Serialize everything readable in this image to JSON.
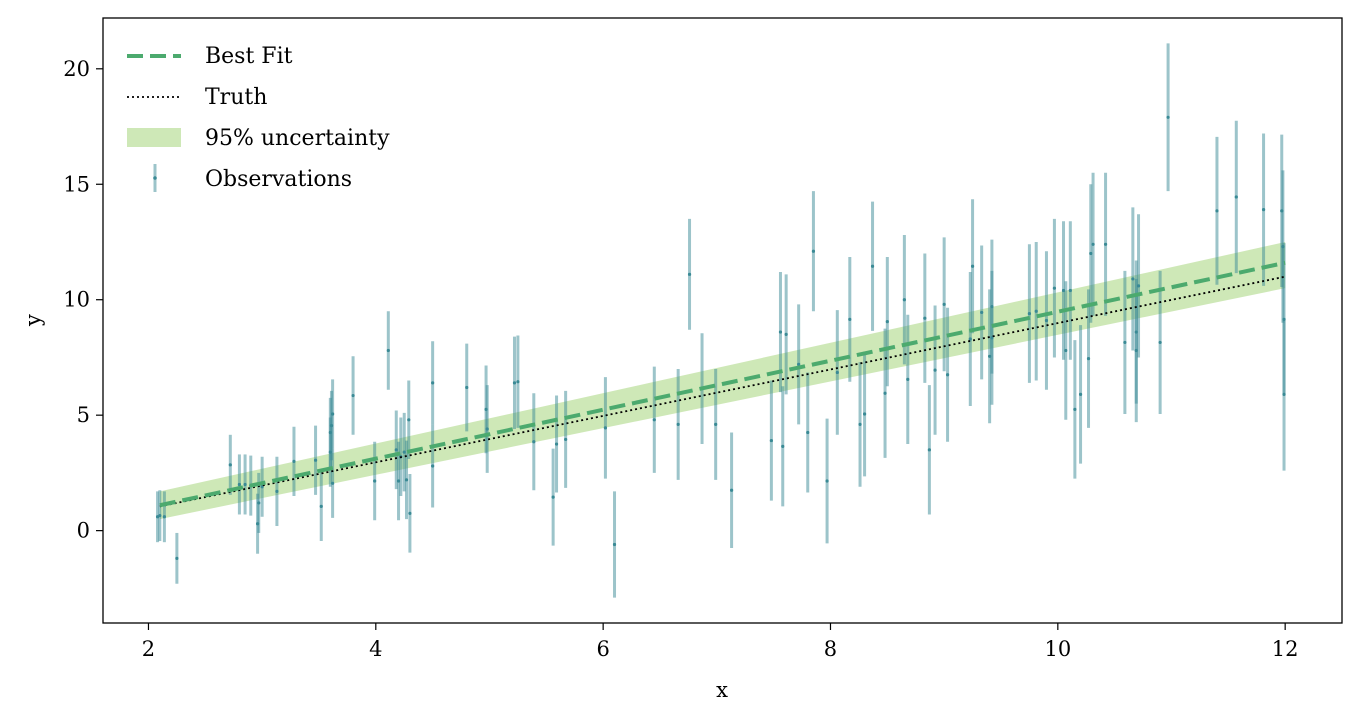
{
  "chart_data": {
    "type": "scatter",
    "title": "",
    "xlabel": "x",
    "ylabel": "y",
    "xlim": [
      1.6,
      12.5
    ],
    "ylim": [
      -4,
      22.2
    ],
    "xticks": [
      2,
      4,
      6,
      8,
      10,
      12
    ],
    "yticks": [
      0,
      5,
      10,
      15,
      20
    ],
    "grid": false,
    "legend_position": "top-left",
    "colors": {
      "best_fit": "#4caa6e",
      "truth": "#000000",
      "band": "#a6d67c",
      "observations": "#3a8a95"
    },
    "legend": [
      "Best Fit",
      "Truth",
      "95% uncertainty",
      "Observations"
    ],
    "best_fit": {
      "x": [
        2.1,
        12.0
      ],
      "y": [
        1.1,
        11.6
      ]
    },
    "truth": {
      "x": [
        2.1,
        12.0
      ],
      "y": [
        1.05,
        11.0
      ]
    },
    "uncertainty_band": {
      "x": [
        2.1,
        12.0
      ],
      "lower": [
        0.5,
        10.5
      ],
      "upper": [
        1.7,
        12.5
      ]
    },
    "observations": {
      "x": [
        2.08,
        2.1,
        2.14,
        2.25,
        2.72,
        2.8,
        2.85,
        2.9,
        2.96,
        2.97,
        3.0,
        3.13,
        3.28,
        3.47,
        3.52,
        3.6,
        3.6,
        3.61,
        3.62,
        3.62,
        3.8,
        3.99,
        4.11,
        4.18,
        4.2,
        4.22,
        4.25,
        4.27,
        4.29,
        4.3,
        4.5,
        4.5,
        4.8,
        4.97,
        4.98,
        5.22,
        5.25,
        5.39,
        5.56,
        5.59,
        5.67,
        6.02,
        6.1,
        6.45,
        6.66,
        6.76,
        6.87,
        6.99,
        7.13,
        7.48,
        7.56,
        7.58,
        7.61,
        7.72,
        7.8,
        7.85,
        7.97,
        8.06,
        8.17,
        8.26,
        8.3,
        8.37,
        8.48,
        8.5,
        8.65,
        8.68,
        8.83,
        8.87,
        8.92,
        9.0,
        9.03,
        9.23,
        9.25,
        9.33,
        9.4,
        9.42,
        9.42,
        9.75,
        9.81,
        9.9,
        9.97,
        10.05,
        10.07,
        10.11,
        10.15,
        10.2,
        10.27,
        10.29,
        10.31,
        10.42,
        10.59,
        10.66,
        10.69,
        10.69,
        10.71,
        10.9,
        10.97,
        11.4,
        11.57,
        11.81,
        11.97,
        11.98,
        11.99,
        11.99
      ],
      "y": [
        0.6,
        0.65,
        0.6,
        -1.2,
        2.85,
        2.0,
        2.0,
        1.95,
        0.3,
        1.2,
        1.9,
        1.7,
        3.0,
        3.05,
        1.05,
        3.4,
        4.25,
        4.55,
        5.05,
        2.05,
        5.85,
        2.15,
        7.8,
        3.5,
        2.15,
        3.2,
        3.4,
        2.2,
        4.8,
        0.75,
        2.8,
        6.4,
        6.2,
        5.25,
        4.4,
        6.4,
        6.45,
        3.85,
        1.45,
        3.75,
        3.95,
        4.45,
        -0.6,
        4.8,
        4.6,
        11.1,
        6.15,
        4.6,
        1.75,
        3.9,
        8.6,
        3.65,
        8.5,
        7.2,
        4.25,
        12.1,
        2.15,
        6.85,
        9.15,
        4.6,
        5.05,
        11.45,
        5.95,
        9.05,
        10.0,
        6.55,
        9.2,
        3.5,
        6.95,
        9.8,
        6.75,
        8.3,
        11.45,
        9.45,
        7.55,
        9.7,
        8.35,
        9.4,
        9.5,
        9.1,
        10.5,
        10.4,
        7.8,
        10.4,
        5.25,
        5.9,
        7.45,
        12.0,
        12.4,
        12.4,
        8.15,
        10.9,
        7.8,
        8.6,
        10.6,
        8.15,
        17.9,
        13.85,
        14.45,
        13.9,
        13.85,
        12.3,
        5.9,
        9.15
      ],
      "yerr": [
        1.1,
        1.1,
        1.1,
        1.1,
        1.3,
        1.3,
        1.3,
        1.3,
        1.3,
        1.3,
        1.3,
        1.5,
        1.5,
        1.5,
        1.5,
        1.5,
        1.5,
        1.5,
        1.5,
        1.5,
        1.7,
        1.7,
        1.7,
        1.7,
        1.7,
        1.7,
        1.7,
        1.7,
        1.7,
        1.7,
        1.8,
        1.8,
        1.9,
        1.9,
        1.9,
        2.0,
        2.0,
        2.1,
        2.1,
        2.1,
        2.1,
        2.2,
        2.3,
        2.3,
        2.4,
        2.4,
        2.4,
        2.4,
        2.5,
        2.6,
        2.6,
        2.6,
        2.6,
        2.6,
        2.6,
        2.6,
        2.7,
        2.7,
        2.7,
        2.7,
        2.7,
        2.8,
        2.8,
        2.8,
        2.8,
        2.8,
        2.8,
        2.8,
        2.8,
        2.9,
        2.9,
        2.9,
        2.9,
        2.9,
        2.9,
        2.9,
        2.9,
        3.0,
        3.0,
        3.0,
        3.0,
        3.0,
        3.0,
        3.0,
        3.0,
        3.0,
        3.0,
        3.0,
        3.1,
        3.1,
        3.1,
        3.1,
        3.1,
        3.1,
        3.1,
        3.1,
        3.2,
        3.2,
        3.3,
        3.3,
        3.3,
        3.3,
        3.3,
        3.3
      ]
    }
  }
}
